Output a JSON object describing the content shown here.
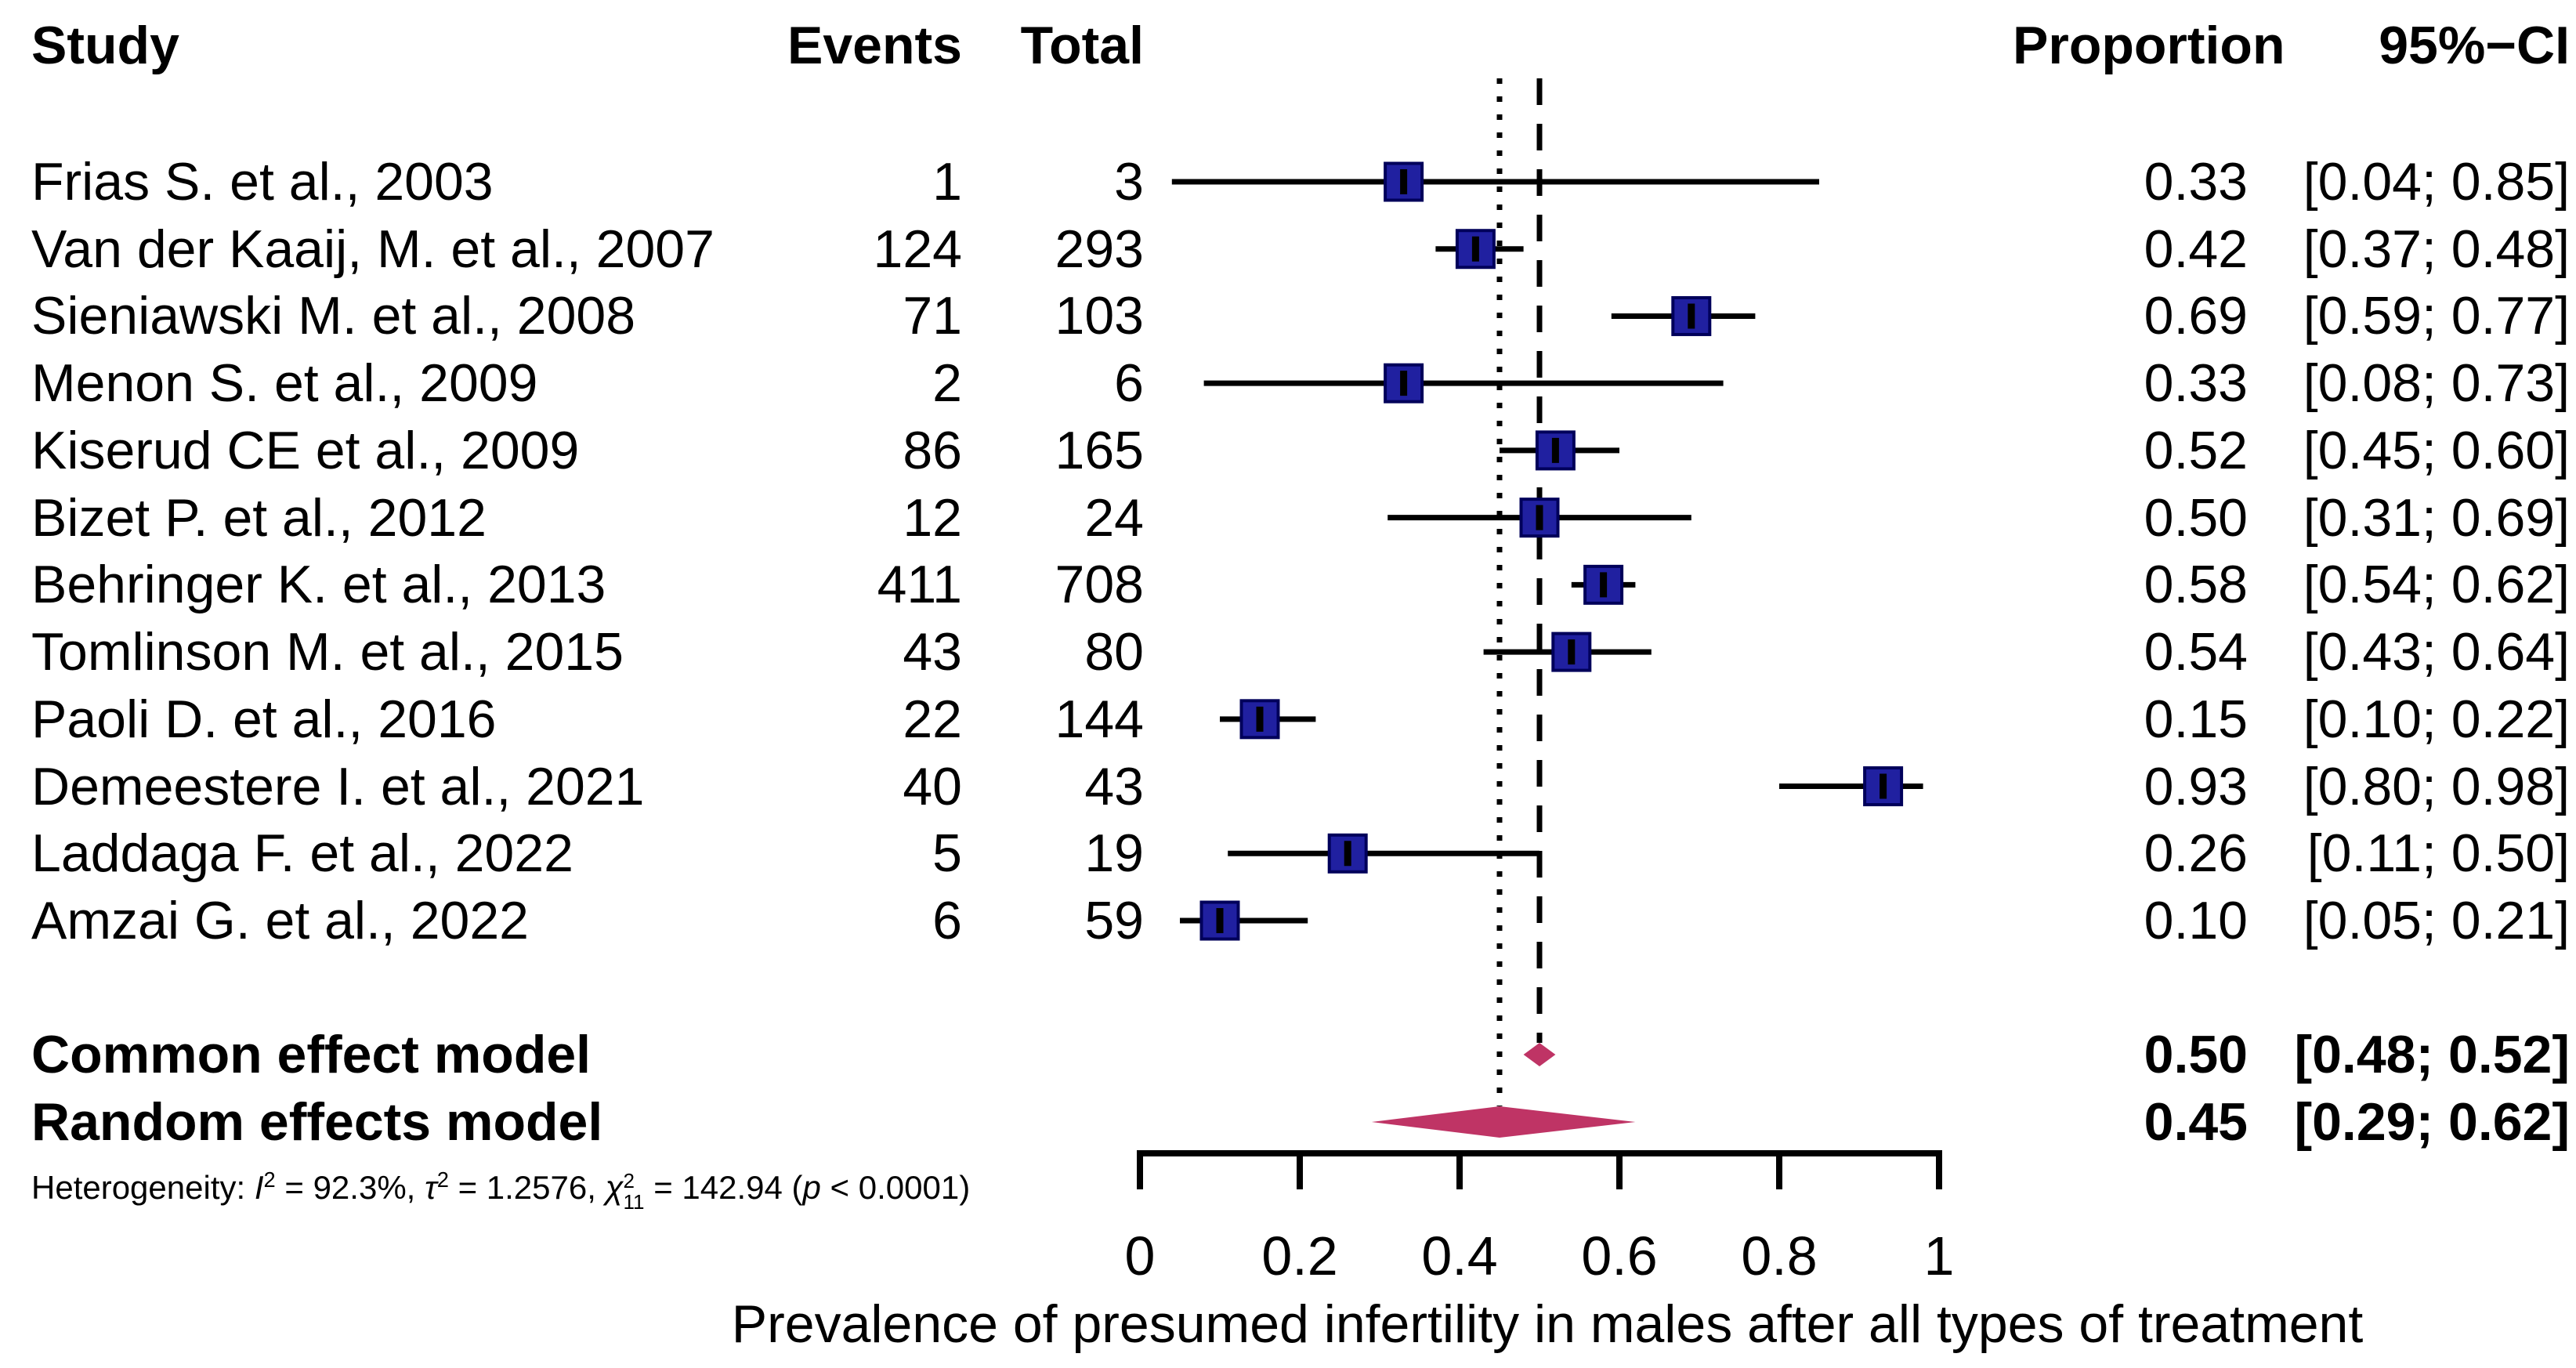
{
  "chart_data": {
    "type": "forest",
    "xlabel": "Prevalence of presumed infertility in males after all types of treatment",
    "xlim": [
      0,
      1
    ],
    "x_ticks": [
      0,
      0.2,
      0.4,
      0.6,
      0.8,
      1
    ],
    "x_tick_labels": [
      "0",
      "0.2",
      "0.4",
      "0.6",
      "0.8",
      "1"
    ],
    "columns": {
      "study": "Study",
      "events": "Events",
      "total": "Total",
      "proportion": "Proportion",
      "ci": "95%−CI"
    },
    "studies": [
      {
        "study": "Frias S. et al., 2003",
        "events": "1",
        "total": "3",
        "proportion": 0.33,
        "ci_low": 0.04,
        "ci_high": 0.85,
        "proportion_label": "0.33",
        "ci_label": "[0.04; 0.85]"
      },
      {
        "study": "Van der Kaaij, M. et al., 2007",
        "events": "124",
        "total": "293",
        "proportion": 0.42,
        "ci_low": 0.37,
        "ci_high": 0.48,
        "proportion_label": "0.42",
        "ci_label": "[0.37; 0.48]"
      },
      {
        "study": "Sieniawski M. et al., 2008",
        "events": "71",
        "total": "103",
        "proportion": 0.69,
        "ci_low": 0.59,
        "ci_high": 0.77,
        "proportion_label": "0.69",
        "ci_label": "[0.59; 0.77]"
      },
      {
        "study": "Menon S. et al., 2009",
        "events": "2",
        "total": "6",
        "proportion": 0.33,
        "ci_low": 0.08,
        "ci_high": 0.73,
        "proportion_label": "0.33",
        "ci_label": "[0.08; 0.73]"
      },
      {
        "study": "Kiserud CE et al., 2009",
        "events": "86",
        "total": "165",
        "proportion": 0.52,
        "ci_low": 0.45,
        "ci_high": 0.6,
        "proportion_label": "0.52",
        "ci_label": "[0.45; 0.60]"
      },
      {
        "study": "Bizet P. et al., 2012",
        "events": "12",
        "total": "24",
        "proportion": 0.5,
        "ci_low": 0.31,
        "ci_high": 0.69,
        "proportion_label": "0.50",
        "ci_label": "[0.31; 0.69]"
      },
      {
        "study": "Behringer K. et al., 2013",
        "events": "411",
        "total": "708",
        "proportion": 0.58,
        "ci_low": 0.54,
        "ci_high": 0.62,
        "proportion_label": "0.58",
        "ci_label": "[0.54; 0.62]"
      },
      {
        "study": "Tomlinson M. et al., 2015",
        "events": "43",
        "total": "80",
        "proportion": 0.54,
        "ci_low": 0.43,
        "ci_high": 0.64,
        "proportion_label": "0.54",
        "ci_label": "[0.43; 0.64]"
      },
      {
        "study": "Paoli D. et al., 2016",
        "events": "22",
        "total": "144",
        "proportion": 0.15,
        "ci_low": 0.1,
        "ci_high": 0.22,
        "proportion_label": "0.15",
        "ci_label": "[0.10; 0.22]"
      },
      {
        "study": "Demeestere I. et al., 2021",
        "events": "40",
        "total": "43",
        "proportion": 0.93,
        "ci_low": 0.8,
        "ci_high": 0.98,
        "proportion_label": "0.93",
        "ci_label": "[0.80; 0.98]"
      },
      {
        "study": "Laddaga F. et al., 2022",
        "events": "5",
        "total": "19",
        "proportion": 0.26,
        "ci_low": 0.11,
        "ci_high": 0.5,
        "proportion_label": "0.26",
        "ci_label": "[0.11; 0.50]"
      },
      {
        "study": "Amzai G. et al., 2022",
        "events": "6",
        "total": "59",
        "proportion": 0.1,
        "ci_low": 0.05,
        "ci_high": 0.21,
        "proportion_label": "0.10",
        "ci_label": "[0.05; 0.21]"
      }
    ],
    "summary": [
      {
        "label": "Common effect model",
        "proportion": 0.5,
        "ci_low": 0.48,
        "ci_high": 0.52,
        "proportion_label": "0.50",
        "ci_label": "[0.48; 0.52]"
      },
      {
        "label": "Random effects model",
        "proportion": 0.45,
        "ci_low": 0.29,
        "ci_high": 0.62,
        "proportion_label": "0.45",
        "ci_label": "[0.29; 0.62]"
      }
    ],
    "reference_lines": [
      {
        "x": 0.5,
        "style": "dashed",
        "meaning": "common effect estimate"
      },
      {
        "x": 0.45,
        "style": "dotted",
        "meaning": "random effects estimate"
      }
    ],
    "heterogeneity_text": "Heterogeneity: I² = 92.3%, τ² = 1.2576, χ²₁₁ = 142.94 (p < 0.0001)",
    "heterogeneity_segments": [
      {
        "t": "Heterogeneity: "
      },
      {
        "t": "I",
        "i": true
      },
      {
        "t": "2",
        "sup": true
      },
      {
        "t": " = 92.3%, "
      },
      {
        "t": "τ",
        "i": true
      },
      {
        "t": "2",
        "sup": true
      },
      {
        "t": " = 1.2576, "
      },
      {
        "t": "χ",
        "i": true
      },
      {
        "stack": true,
        "sup": "2",
        "sub": "11"
      },
      {
        "t": " = 142.94 ("
      },
      {
        "t": "p",
        "i": true
      },
      {
        "t": " < 0.0001)"
      }
    ],
    "legend_position": "none",
    "grid": false,
    "colors": {
      "square": "#2020a0",
      "square_border": "#00005a",
      "diamond": "#bf3465",
      "line": "#000000",
      "background": "#ffffff"
    }
  }
}
